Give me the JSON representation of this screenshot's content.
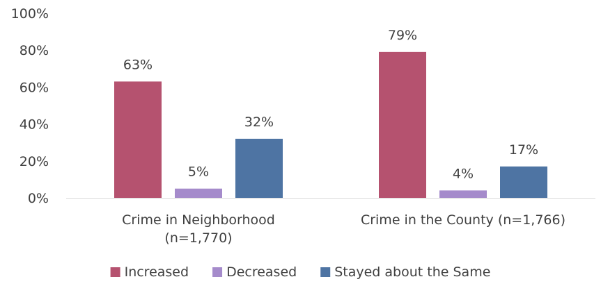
{
  "chart_data": {
    "type": "bar",
    "categories": [
      [
        "Crime in Neighborhood",
        "(n=1,770)"
      ],
      [
        "Crime in the County (n=1,766)"
      ]
    ],
    "series": [
      {
        "name": "Increased",
        "color": "#b5526f",
        "values": [
          63,
          79
        ],
        "labels": [
          "63%",
          "79%"
        ]
      },
      {
        "name": "Decreased",
        "color": "#a58bcb",
        "values": [
          5,
          4
        ],
        "labels": [
          "5%",
          "4%"
        ]
      },
      {
        "name": "Stayed about the Same",
        "color": "#4e74a3",
        "values": [
          32,
          17
        ],
        "labels": [
          "32%",
          "17%"
        ]
      }
    ],
    "ylim": [
      0,
      100
    ],
    "yticks": [
      0,
      20,
      40,
      60,
      80,
      100
    ],
    "ytick_labels": [
      "0%",
      "20%",
      "40%",
      "60%",
      "80%",
      "100%"
    ],
    "grid": false,
    "legend": "bottom-center",
    "axis_color": "#d9d9d9"
  }
}
